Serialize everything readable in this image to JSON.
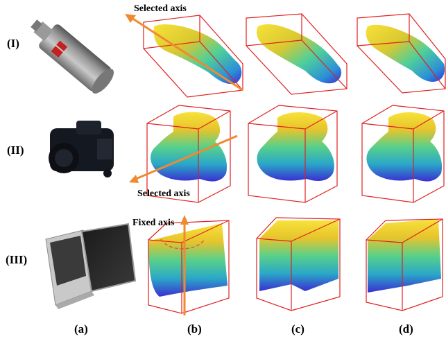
{
  "row_labels": [
    "(I)",
    "(II)",
    "(III)"
  ],
  "column_labels": [
    "(a)",
    "(b)",
    "(c)",
    "(d)"
  ],
  "annotations": {
    "row1_axis": "Selected axis",
    "row2_axis": "Selected axis",
    "row3_axis": "Fixed axis"
  },
  "photo_objects": [
    "bottle-photo",
    "camera-photo",
    "laptop-photo"
  ],
  "colors": {
    "bbox": "#e02020",
    "axis_arrow": "#f08a30",
    "depth_top": "#f7d43a",
    "depth_mid": "#2fc3a0",
    "depth_bottom": "#3b3fd8"
  }
}
